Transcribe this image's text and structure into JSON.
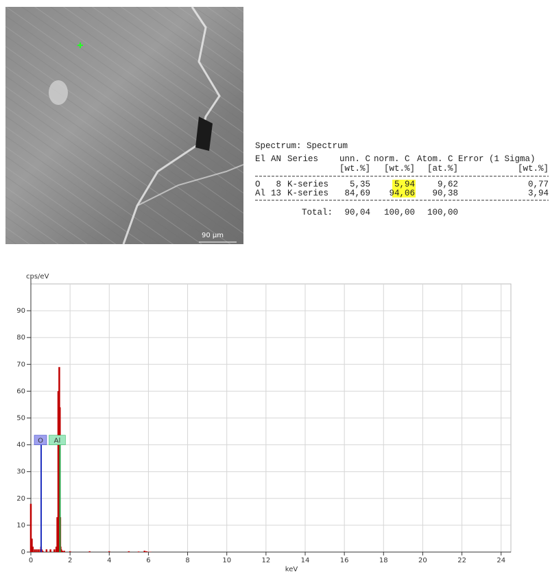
{
  "sem_image": {
    "scale_label": "90 µm"
  },
  "table": {
    "title": "Spectrum: Spectrum",
    "headers": [
      "El",
      "AN",
      "Series",
      "unn. C",
      "norm. C",
      "Atom. C",
      "Error (1 Sigma)"
    ],
    "units": [
      "[wt.%]",
      "[wt.%]",
      "[at.%]",
      "[wt.%]"
    ],
    "rows": [
      [
        "O",
        "8",
        "K-series",
        "5,35",
        "5,94",
        "9,62",
        "0,77"
      ],
      [
        "Al",
        "13",
        "K-series",
        "84,69",
        "94,06",
        "90,38",
        "3,94"
      ]
    ],
    "total": {
      "label": "Total:",
      "values": [
        "90,04",
        "100,00",
        "100,00"
      ]
    }
  },
  "chart_data": {
    "type": "spectrum",
    "y_label": "cps/eV",
    "x_label": "keV",
    "xlim": [
      0,
      24.5
    ],
    "ylim": [
      0,
      100
    ],
    "xticks": [
      0,
      2,
      4,
      6,
      8,
      10,
      12,
      14,
      16,
      18,
      20,
      22,
      24
    ],
    "yticks": [
      0,
      10,
      20,
      30,
      40,
      50,
      60,
      70,
      80,
      90
    ],
    "grid": true,
    "series": [
      {
        "color": "#c00000",
        "x": [
          0,
          0.05,
          0.1,
          0.2,
          0.3,
          0.4,
          0.5,
          0.52,
          0.55,
          0.6,
          0.8,
          1.0,
          1.2,
          1.3,
          1.35,
          1.4,
          1.45,
          1.48,
          1.5,
          1.52,
          1.55,
          1.6,
          1.7,
          2.0,
          3.0,
          4.0,
          5.0,
          5.5,
          5.8,
          5.9,
          6.0,
          6.1,
          7,
          10,
          15,
          20,
          24.5
        ],
        "values": [
          18,
          5,
          2,
          1,
          1,
          1,
          1,
          2,
          1,
          0.5,
          1,
          1,
          1,
          2,
          13,
          60,
          69,
          54,
          13,
          2,
          1,
          0.5,
          0.5,
          0.3,
          0.3,
          0.3,
          0.3,
          0.2,
          0.5,
          0.3,
          0.1,
          0.1,
          0,
          0,
          0,
          0,
          0
        ]
      }
    ],
    "markers": [
      {
        "label": "O",
        "x": 0.525,
        "y": 40,
        "color": "#2030c0",
        "fill": "#9fa0ee"
      },
      {
        "label": "Al",
        "x": 1.486,
        "y": 40,
        "color": "#20b050",
        "fill": "#9ee8bf"
      }
    ]
  }
}
